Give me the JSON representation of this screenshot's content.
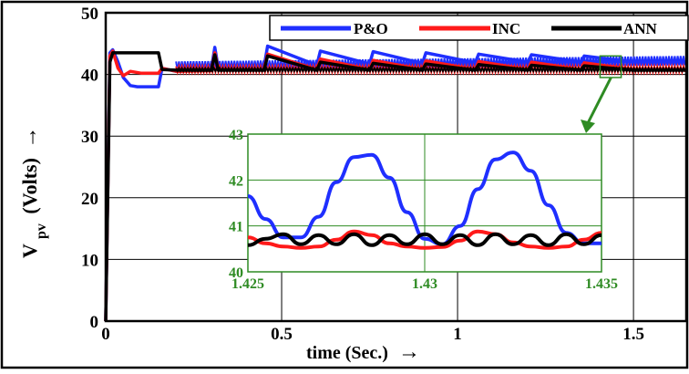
{
  "chart_data": [
    {
      "type": "line",
      "title": "",
      "xlabel": "time (Sec.)",
      "xlabel_arrow": "→",
      "ylabel_main": "V",
      "ylabel_sub": "pv",
      "ylabel_rest": "(Volts)",
      "ylabel_arrow": "→",
      "xlim": [
        0,
        1.65
      ],
      "ylim": [
        0,
        50
      ],
      "x_ticks": [
        0,
        0.5,
        1,
        1.5
      ],
      "x_tick_labels": [
        "0",
        "0.5",
        "1",
        "1.5"
      ],
      "y_ticks": [
        0,
        10,
        20,
        30,
        40,
        50
      ],
      "y_tick_labels": [
        "0",
        "10",
        "20",
        "30",
        "40",
        "50"
      ],
      "grid": true,
      "legend_position": "top-right",
      "series": [
        {
          "name": "P&O",
          "color": "#1f2fff",
          "x": [
            0,
            0.012,
            0.02,
            0.035,
            0.05,
            0.07,
            0.09,
            0.11,
            0.13,
            0.15,
            0.16,
            0.2,
            0.3,
            0.31,
            0.32,
            0.45,
            0.46,
            0.6,
            0.61,
            0.75,
            0.76,
            0.9,
            0.91,
            1.05,
            1.06,
            1.2,
            1.21,
            1.35,
            1.36,
            1.5,
            1.65
          ],
          "y": [
            0,
            43.5,
            44.0,
            42.0,
            39.5,
            38.2,
            38.0,
            38.0,
            38.0,
            38.0,
            41.0,
            40.5,
            40.8,
            44.4,
            41.0,
            41.2,
            44.6,
            41.5,
            43.8,
            41.7,
            43.7,
            41.8,
            43.5,
            41.9,
            43.3,
            42.0,
            43.2,
            42.0,
            43.0,
            42.0,
            42.0
          ],
          "band_amplitude": 1.0
        },
        {
          "name": "INC",
          "color": "#ff1a1a",
          "x": [
            0,
            0.012,
            0.02,
            0.035,
            0.05,
            0.07,
            0.1,
            0.15,
            0.16,
            0.2,
            0.3,
            0.31,
            0.32,
            0.45,
            0.46,
            0.6,
            0.61,
            0.75,
            0.76,
            0.9,
            0.91,
            1.05,
            1.06,
            1.2,
            1.21,
            1.35,
            1.36,
            1.5,
            1.65
          ],
          "y": [
            0,
            43.0,
            43.8,
            41.0,
            39.8,
            40.5,
            40.2,
            40.2,
            41.0,
            40.5,
            40.6,
            43.5,
            40.8,
            40.8,
            43.3,
            40.8,
            42.5,
            40.8,
            42.3,
            40.8,
            42.2,
            40.8,
            42.1,
            40.8,
            42.0,
            40.8,
            41.9,
            40.8,
            40.8
          ],
          "band_amplitude": 0.6
        },
        {
          "name": "ANN",
          "color": "#000000",
          "x": [
            0,
            0.012,
            0.02,
            0.04,
            0.08,
            0.12,
            0.15,
            0.16,
            0.2,
            0.3,
            0.31,
            0.32,
            0.45,
            0.46,
            0.6,
            0.61,
            0.75,
            0.76,
            0.9,
            0.91,
            1.05,
            1.06,
            1.2,
            1.21,
            1.35,
            1.36,
            1.5,
            1.65
          ],
          "y": [
            0,
            42.0,
            43.5,
            43.5,
            43.5,
            43.5,
            43.5,
            40.8,
            40.7,
            40.7,
            43.2,
            40.7,
            40.7,
            43.0,
            40.7,
            42.0,
            40.7,
            41.8,
            40.7,
            41.7,
            40.7,
            41.6,
            40.7,
            41.5,
            40.7,
            41.4,
            40.7,
            40.7
          ],
          "band_amplitude": 0.3
        }
      ],
      "zoom_region": {
        "x": [
          1.405,
          1.465
        ],
        "y": [
          39.5,
          43
        ]
      }
    },
    {
      "type": "line",
      "title": "",
      "xlim": [
        1.425,
        1.435
      ],
      "ylim": [
        40,
        43
      ],
      "x_ticks": [
        1.425,
        1.43,
        1.435
      ],
      "x_tick_labels": [
        "1.425",
        "1.43",
        "1.435"
      ],
      "y_ticks": [
        40,
        41,
        42,
        43
      ],
      "y_tick_labels": [
        "40",
        "41",
        "42",
        "43"
      ],
      "grid": true,
      "series": [
        {
          "name": "P&O",
          "color": "#1f2fff",
          "x": [
            1.425,
            1.4255,
            1.426,
            1.4265,
            1.427,
            1.4275,
            1.428,
            1.4285,
            1.429,
            1.4295,
            1.43,
            1.4305,
            1.431,
            1.4315,
            1.432,
            1.4325,
            1.433,
            1.4335,
            1.434,
            1.4345,
            1.435
          ],
          "y": [
            41.65,
            41.15,
            40.75,
            40.75,
            41.2,
            41.95,
            42.5,
            42.55,
            42.05,
            41.3,
            40.72,
            40.6,
            41.0,
            41.8,
            42.45,
            42.6,
            42.2,
            41.45,
            40.85,
            40.62,
            40.62
          ]
        },
        {
          "name": "INC",
          "color": "#ff1a1a",
          "x": [
            1.425,
            1.4255,
            1.426,
            1.4265,
            1.427,
            1.4275,
            1.428,
            1.4285,
            1.429,
            1.4295,
            1.43,
            1.4305,
            1.431,
            1.4315,
            1.432,
            1.4325,
            1.433,
            1.4335,
            1.434,
            1.4345,
            1.435
          ],
          "y": [
            40.75,
            40.62,
            40.55,
            40.52,
            40.55,
            40.7,
            40.88,
            40.8,
            40.62,
            40.55,
            40.52,
            40.54,
            40.68,
            40.88,
            40.82,
            40.64,
            40.55,
            40.52,
            40.55,
            40.7,
            40.85
          ]
        },
        {
          "name": "ANN",
          "color": "#000000",
          "x": [
            1.425,
            1.4255,
            1.426,
            1.4265,
            1.427,
            1.4275,
            1.428,
            1.4285,
            1.429,
            1.4295,
            1.43,
            1.4305,
            1.431,
            1.4315,
            1.432,
            1.4325,
            1.433,
            1.4335,
            1.434,
            1.4345,
            1.435
          ],
          "y": [
            40.58,
            40.72,
            40.82,
            40.6,
            40.8,
            40.6,
            40.82,
            40.58,
            40.8,
            40.6,
            40.82,
            40.6,
            40.8,
            40.58,
            40.82,
            40.6,
            40.8,
            40.58,
            40.82,
            40.6,
            40.8
          ]
        }
      ]
    }
  ],
  "colors": {
    "inset_accent": "#2e8b23",
    "frame": "#000000"
  },
  "zoom_arrow_icon": "arrow-down-icon"
}
